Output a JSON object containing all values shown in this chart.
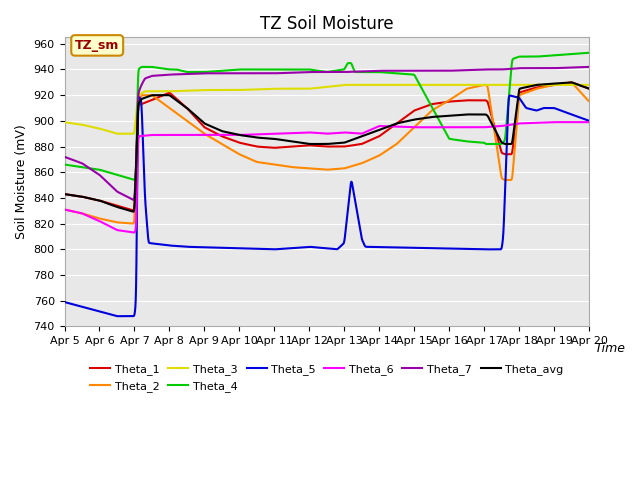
{
  "title": "TZ Soil Moisture",
  "xlabel": "Time",
  "ylabel": "Soil Moisture (mV)",
  "ylim": [
    740,
    965
  ],
  "yticks": [
    740,
    760,
    780,
    800,
    820,
    840,
    860,
    880,
    900,
    920,
    940,
    960
  ],
  "date_labels": [
    "Apr 5",
    "Apr 6",
    "Apr 7",
    "Apr 8",
    "Apr 9",
    "Apr 10",
    "Apr 11",
    "Apr 12",
    "Apr 13",
    "Apr 14",
    "Apr 15",
    "Apr 16",
    "Apr 17",
    "Apr 18",
    "Apr 19",
    "Apr 20"
  ],
  "legend_label": "TZ_sm",
  "colors": {
    "Theta_1": "#dd0000",
    "Theta_2": "#ff8800",
    "Theta_3": "#dddd00",
    "Theta_4": "#00cc00",
    "Theta_5": "#0000dd",
    "Theta_6": "#ff00ff",
    "Theta_7": "#9900aa",
    "Theta_avg": "#000000"
  },
  "bg_color": "#e8e8e8",
  "legend_box_color": "#ffffcc",
  "legend_box_border": "#cc8800"
}
